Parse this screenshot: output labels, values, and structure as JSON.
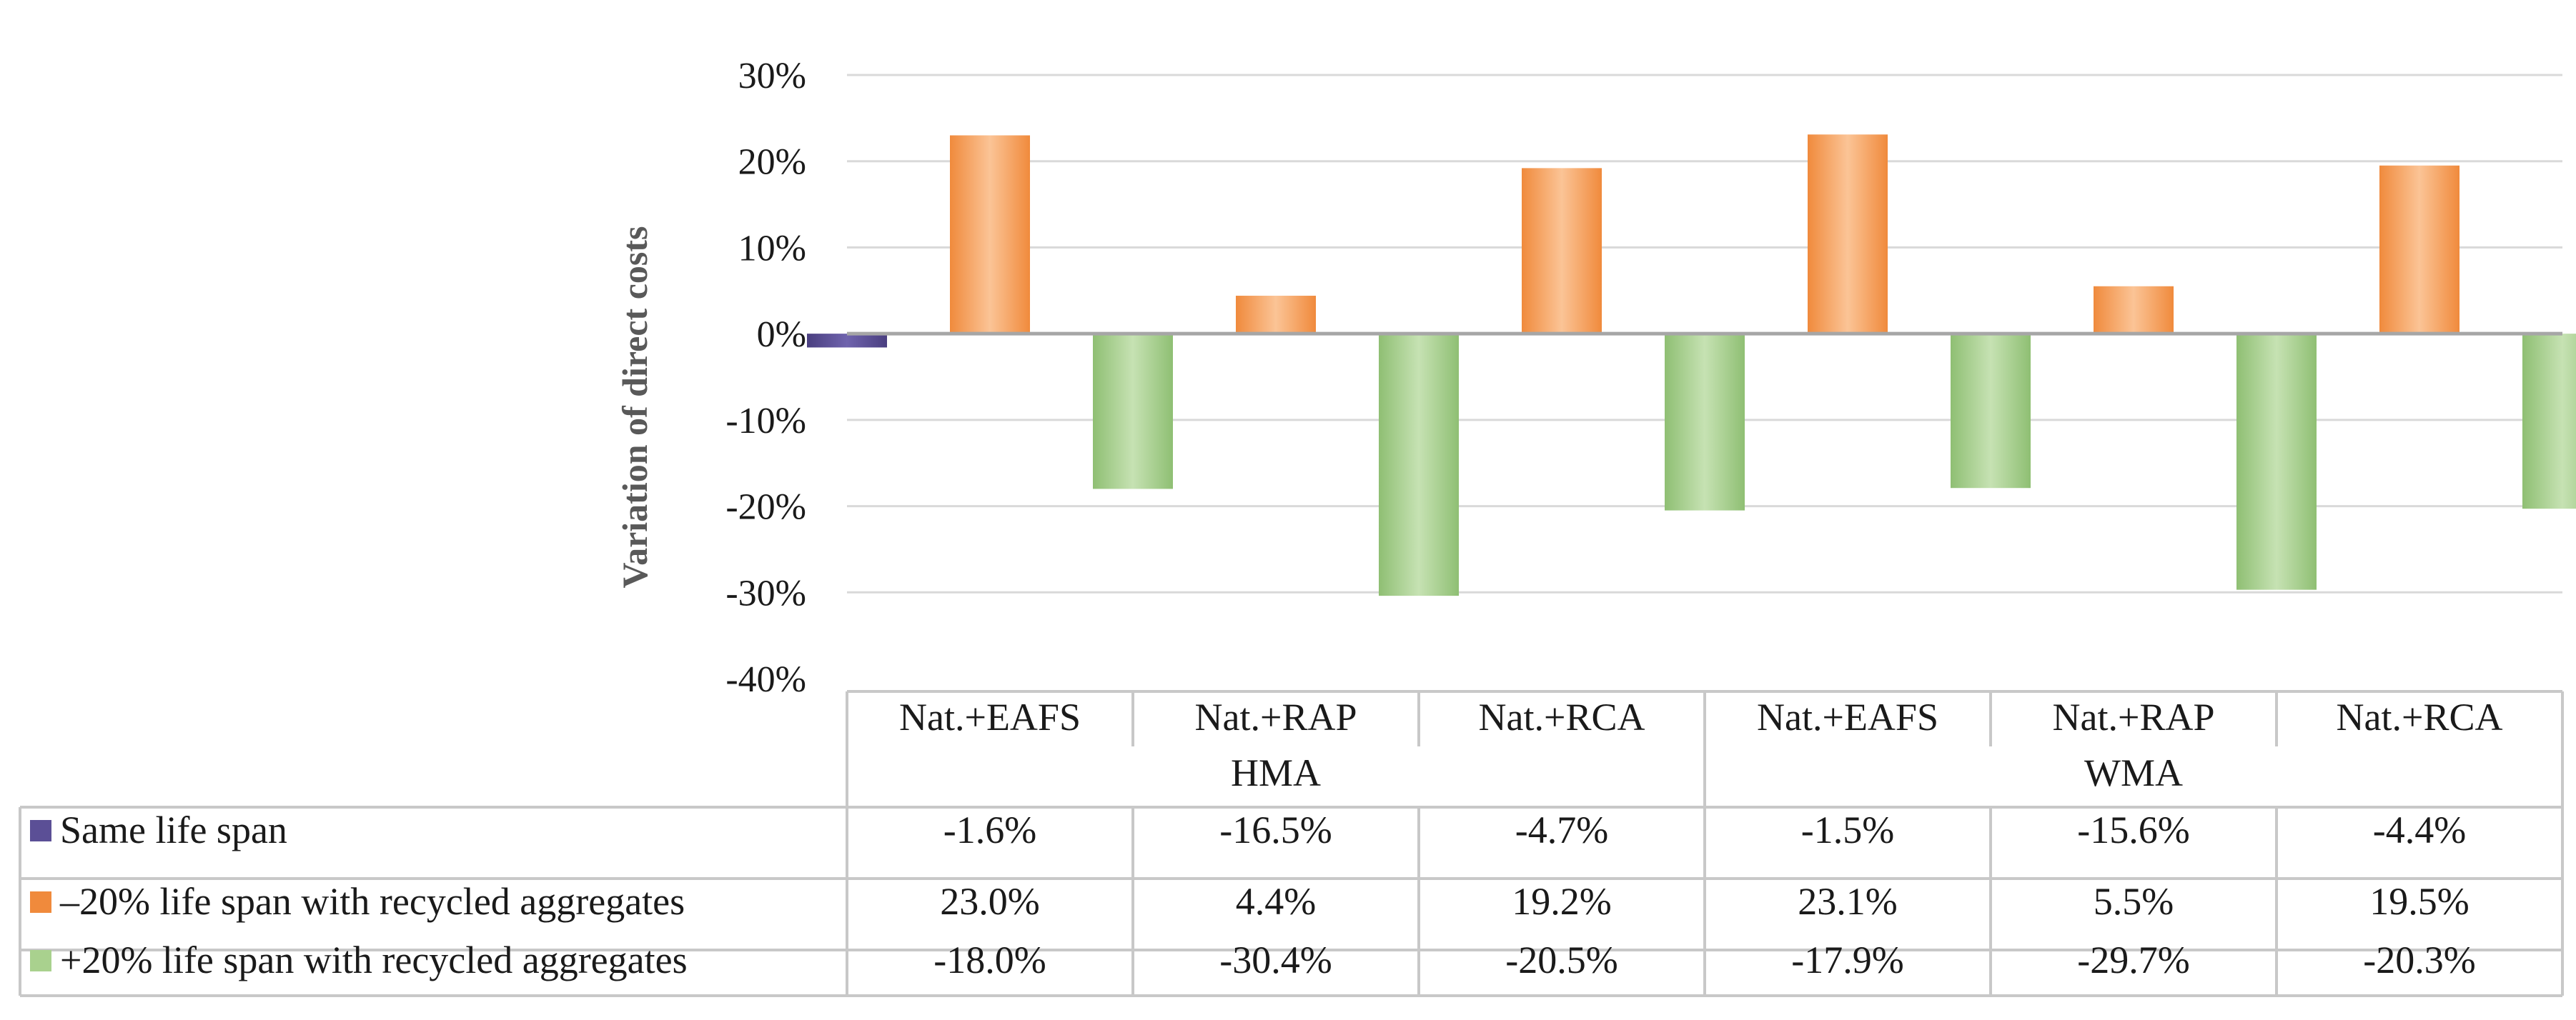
{
  "chart_data": {
    "type": "bar",
    "title": "",
    "xlabel": "",
    "ylabel": "Variation of direct costs",
    "ylim": [
      -0.4,
      0.3
    ],
    "yticks": [
      {
        "value": 0.3,
        "label": "30%"
      },
      {
        "value": 0.2,
        "label": "20%"
      },
      {
        "value": 0.1,
        "label": "10%"
      },
      {
        "value": 0.0,
        "label": "0%"
      },
      {
        "value": -0.1,
        "label": "-10%"
      },
      {
        "value": -0.2,
        "label": "-20%"
      },
      {
        "value": -0.3,
        "label": "-30%"
      },
      {
        "value": -0.4,
        "label": "-40%"
      }
    ],
    "grid": true,
    "categories": [
      "Nat.+EAFS",
      "Nat.+RAP",
      "Nat.+RCA",
      "Nat.+EAFS",
      "Nat.+RAP",
      "Nat.+RCA"
    ],
    "groups": [
      {
        "label": "HMA",
        "span": [
          0,
          2
        ]
      },
      {
        "label": "WMA",
        "span": [
          3,
          5
        ]
      }
    ],
    "series": [
      {
        "name": "Same life span",
        "color": "#5b4f96",
        "values": [
          -0.016,
          -0.165,
          -0.047,
          -0.015,
          -0.156,
          -0.044
        ],
        "labels": [
          "-1.6%",
          "-16.5%",
          "-4.7%",
          "-1.5%",
          "-15.6%",
          "-4.4%"
        ]
      },
      {
        "name": "–20%  life span with recycled aggregates",
        "color": "#f4a46a",
        "values": [
          0.23,
          0.044,
          0.192,
          0.231,
          0.055,
          0.195
        ],
        "labels": [
          "23.0%",
          "4.4%",
          "19.2%",
          "23.1%",
          "5.5%",
          "19.5%"
        ]
      },
      {
        "name": "+20%  life span with recycled aggregates",
        "color": "#a9d18e",
        "values": [
          -0.18,
          -0.304,
          -0.205,
          -0.179,
          -0.297,
          -0.203
        ],
        "labels": [
          "-18.0%",
          "-30.4%",
          "-20.5%",
          "-17.9%",
          "-29.7%",
          "-20.3%"
        ]
      }
    ],
    "legend": "data-table-left"
  },
  "colors": {
    "bar_same_negative_large": "#b5000f",
    "grid": "#d9d9d9",
    "axis_zero": "#a6a6a6",
    "table_border": "#c8c8c8"
  }
}
